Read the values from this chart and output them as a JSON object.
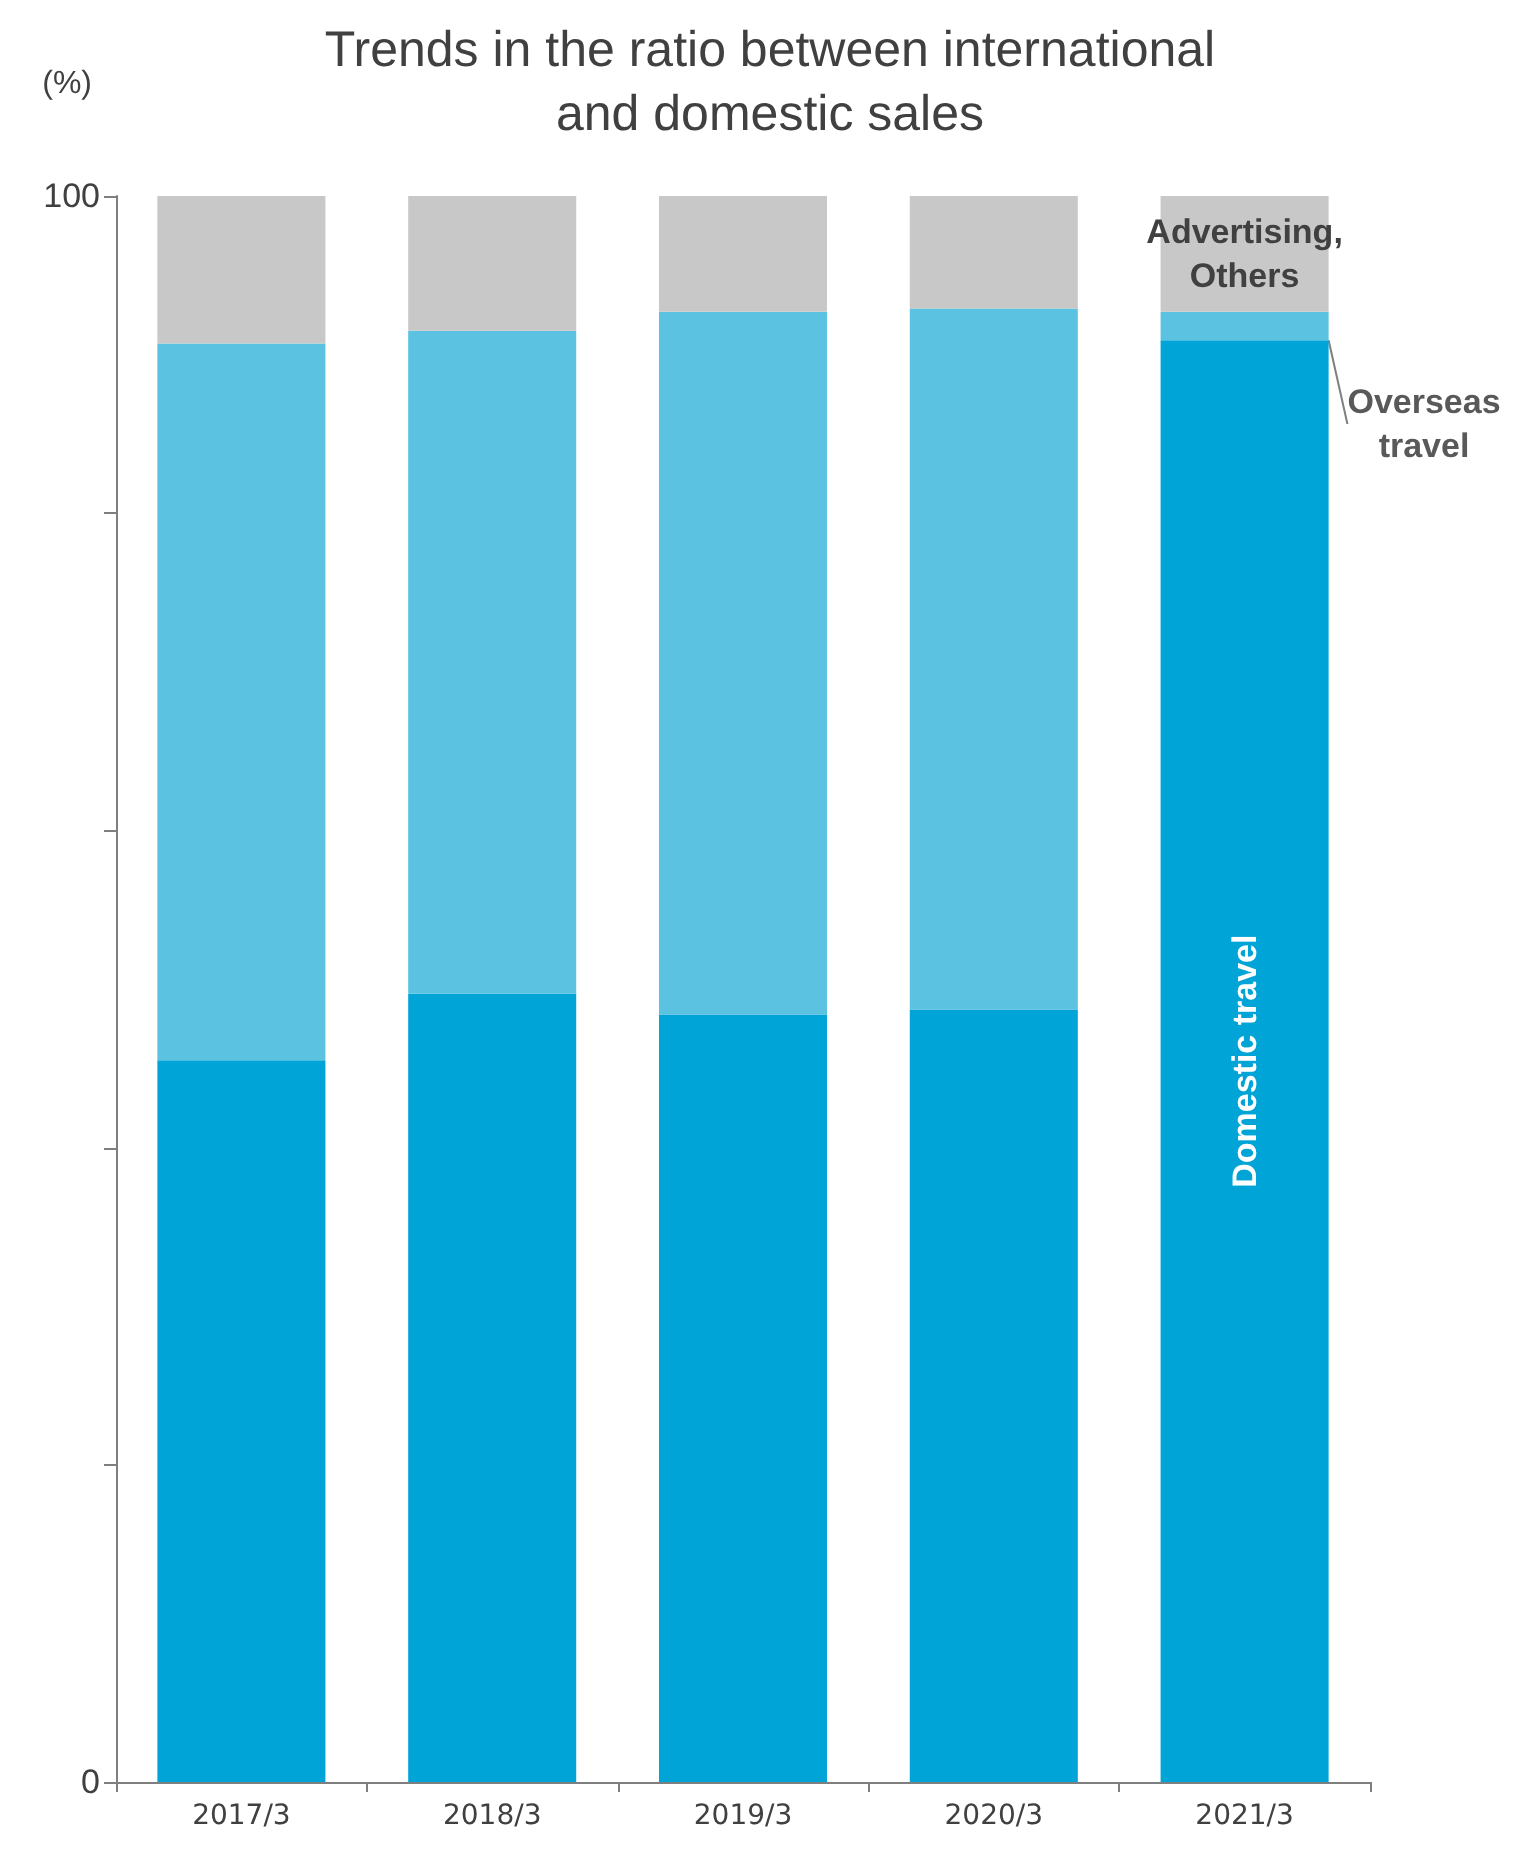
{
  "chart_data": {
    "type": "bar",
    "title": "Trends in the ratio between international\nand domestic sales",
    "ylabel": "(%)",
    "categories": [
      "2017/3",
      "2018/3",
      "2019/3",
      "2020/3",
      "2021/3"
    ],
    "stacked": true,
    "ylim": [
      0,
      100
    ],
    "yticks": [
      0,
      {
        "value": 20,
        "label": null
      },
      {
        "value": 40,
        "label": null
      },
      {
        "value": 60,
        "label": null
      },
      {
        "value": 80,
        "label": null
      },
      100
    ],
    "grid": false,
    "legend": false,
    "series": [
      {
        "name": "Domestic travel",
        "color": "#00a4d6",
        "values": [
          45.5,
          49.7,
          48.4,
          48.7,
          90.9
        ]
      },
      {
        "name": "Overseas travel",
        "color": "#5bc2e1",
        "values": [
          45.2,
          41.8,
          44.3,
          44.2,
          1.8
        ]
      },
      {
        "name": "Advertising, Others",
        "color": "#c8c8c8",
        "values": [
          9.3,
          8.5,
          7.3,
          7.1,
          7.3
        ]
      }
    ]
  }
}
